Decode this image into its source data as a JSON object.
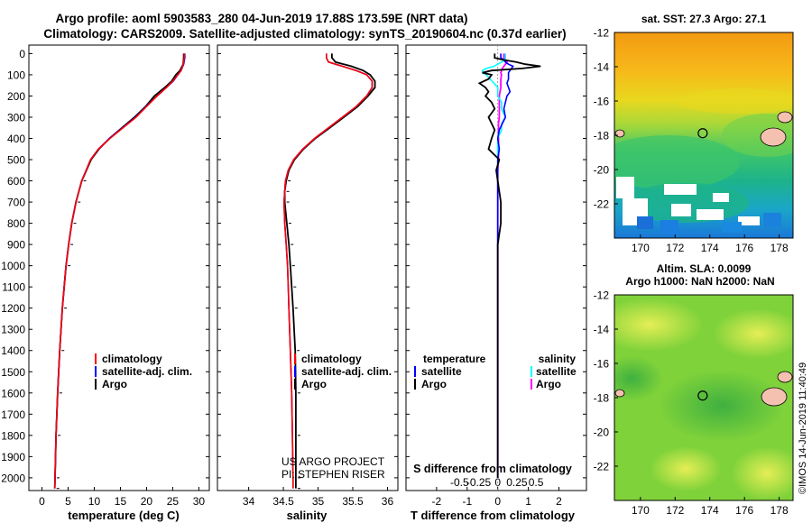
{
  "header": {
    "line1": "Argo profile: aoml 5903583_280 04-Jun-2019 17.88S 173.59E (NRT data)",
    "line2": "Climatology: CARS2009. Satellite-adjusted climatology: synTS_20190604.nc (0.37d earlier)"
  },
  "credits": {
    "project": "US ARGO PROJECT",
    "pi": "PI: STEPHEN RISER",
    "imos": "©IMOS 14-Jun-2019 11:40:49"
  },
  "colors": {
    "climatology": "#ff0000",
    "satellite": "#0000ff",
    "argo": "#000000",
    "sal_satellite": "#00ffff",
    "sal_argo": "#ff00ff"
  },
  "depth_axis": {
    "ticks": [
      "0",
      "100",
      "200",
      "300",
      "400",
      "500",
      "600",
      "700",
      "800",
      "900",
      "1000",
      "1100",
      "1200",
      "1300",
      "1400",
      "1500",
      "1600",
      "1700",
      "1800",
      "1900",
      "2000"
    ],
    "range": [
      -40,
      2060
    ]
  },
  "legends": {
    "climatology": "climatology",
    "satellite_adj": "satellite-adj. clim.",
    "argo": "Argo",
    "temperature": "temperature",
    "salinity": "salinity",
    "satellite": "satellite"
  },
  "maps": {
    "top_title": "sat. SST: 27.3 Argo: 27.1",
    "bottom_title1": "Altim. SLA: 0.0099",
    "bottom_title2": "Argo h1000: NaN h2000: NaN",
    "lat_ticks": [
      "-12",
      "-14",
      "-16",
      "-18",
      "-20",
      "-22"
    ],
    "lon_ticks": [
      "170",
      "172",
      "174",
      "176",
      "178"
    ],
    "lat_range": [
      -24,
      -12
    ],
    "lon_range": [
      168.5,
      178.8
    ],
    "argo_position": {
      "lat": -17.88,
      "lon": 173.59
    }
  },
  "chart_data": [
    {
      "type": "line",
      "name": "temperature",
      "xlabel": "temperature (deg C)",
      "xticks": [
        "0",
        "5",
        "10",
        "15",
        "20",
        "25",
        "30"
      ],
      "xlim": [
        -2.5,
        32
      ],
      "ylim": [
        -40,
        2060
      ],
      "depth": [
        0,
        20,
        50,
        80,
        100,
        130,
        160,
        200,
        250,
        300,
        350,
        400,
        450,
        500,
        600,
        700,
        800,
        900,
        1000,
        1200,
        1400,
        1600,
        1800,
        2000,
        2050
      ],
      "series": [
        {
          "name": "climatology",
          "values": [
            27.2,
            27.2,
            27.0,
            26.6,
            26.0,
            25.0,
            23.8,
            22.0,
            20.0,
            18.0,
            15.5,
            13.0,
            10.8,
            9.3,
            7.6,
            6.5,
            5.7,
            5.1,
            4.6,
            3.9,
            3.4,
            3.0,
            2.7,
            2.5,
            2.45
          ]
        },
        {
          "name": "satellite-adj. clim.",
          "values": [
            27.3,
            27.3,
            27.1,
            26.6,
            26.0,
            25.1,
            23.8,
            22.0,
            19.9,
            17.9,
            15.4,
            12.9,
            10.8,
            9.3,
            7.6,
            6.5,
            5.7,
            5.1,
            4.6,
            3.9,
            3.4,
            3.0,
            2.7,
            2.5,
            2.45
          ]
        },
        {
          "name": "Argo",
          "values": [
            27.1,
            27.1,
            27.0,
            26.4,
            25.6,
            24.8,
            23.5,
            21.5,
            19.8,
            17.7,
            15.3,
            12.9,
            10.9,
            9.4,
            7.6,
            6.5,
            5.7,
            5.1,
            4.6,
            3.9,
            3.4,
            3.0,
            2.7,
            2.5,
            2.45
          ]
        }
      ]
    },
    {
      "type": "line",
      "name": "salinity",
      "xlabel": "salinity",
      "xticks": [
        "34",
        "34.5",
        "35",
        "35.5",
        "36"
      ],
      "xlim": [
        33.55,
        36.15
      ],
      "ylim": [
        -40,
        2060
      ],
      "depth": [
        0,
        20,
        40,
        60,
        80,
        100,
        130,
        160,
        200,
        250,
        300,
        350,
        400,
        450,
        500,
        550,
        600,
        650,
        700,
        800,
        900,
        1000,
        1100,
        1200,
        1400,
        1600,
        1800,
        2000,
        2050
      ],
      "series": [
        {
          "name": "climatology",
          "values": [
            35.12,
            35.12,
            35.15,
            35.35,
            35.55,
            35.7,
            35.78,
            35.78,
            35.7,
            35.55,
            35.35,
            35.15,
            34.95,
            34.78,
            34.65,
            34.57,
            34.53,
            34.52,
            34.51,
            34.52,
            34.54,
            34.56,
            34.57,
            34.58,
            34.6,
            34.62,
            34.63,
            34.64,
            34.64
          ]
        },
        {
          "name": "satellite-adj. clim.",
          "values": [
            35.12,
            35.12,
            35.15,
            35.35,
            35.55,
            35.7,
            35.78,
            35.78,
            35.7,
            35.55,
            35.35,
            35.15,
            34.95,
            34.78,
            34.65,
            34.57,
            34.53,
            34.52,
            34.51,
            34.52,
            34.54,
            34.56,
            34.57,
            34.58,
            34.6,
            34.62,
            34.63,
            34.64,
            34.64
          ]
        },
        {
          "name": "Argo",
          "values": [
            35.2,
            35.2,
            35.25,
            35.48,
            35.65,
            35.75,
            35.82,
            35.82,
            35.72,
            35.57,
            35.37,
            35.17,
            34.96,
            34.79,
            34.66,
            34.58,
            34.54,
            34.52,
            34.52,
            34.55,
            34.58,
            34.6,
            34.62,
            34.64,
            34.67,
            34.68,
            34.68,
            34.68,
            34.68
          ]
        }
      ]
    },
    {
      "type": "line",
      "name": "difference from climatology",
      "xlabel": "T difference from climatology",
      "xlabel2": "S difference from climatology",
      "xticks_t": [
        "-2",
        "-1",
        "0",
        "1",
        "2"
      ],
      "xticks_s": [
        "-0.5",
        "-0.25",
        "0",
        "0.25",
        "0.5"
      ],
      "xlim": [
        -3,
        2.9
      ],
      "ylim": [
        -40,
        2060
      ],
      "depth": [
        0,
        20,
        30,
        40,
        50,
        60,
        70,
        80,
        90,
        100,
        120,
        140,
        160,
        180,
        200,
        230,
        260,
        300,
        330,
        360,
        400,
        450,
        500,
        550,
        600,
        700,
        800,
        900,
        1000,
        1200,
        1400,
        1600,
        1800,
        2000
      ],
      "series": [
        {
          "name": "temperature Argo",
          "values": [
            -0.1,
            -0.1,
            0.2,
            0.6,
            0.9,
            1.4,
            0.8,
            -0.2,
            -0.5,
            -0.2,
            -0.3,
            -0.6,
            -0.4,
            -0.3,
            -0.4,
            -0.2,
            -0.1,
            -0.3,
            -0.2,
            -0.1,
            -0.2,
            -0.3,
            0.05,
            -0.05,
            0.0,
            0.1,
            0.1,
            0.0,
            0.0,
            0.0,
            0.0,
            0.0,
            0.0,
            0.0
          ]
        },
        {
          "name": "temperature satellite",
          "values": [
            0.1,
            0.1,
            0.2,
            0.25,
            0.35,
            0.5,
            0.45,
            0.4,
            0.35,
            0.35,
            0.35,
            0.3,
            0.35,
            0.4,
            0.3,
            0.25,
            0.2,
            0.25,
            0.15,
            0.05,
            0.0,
            0.05,
            0.0,
            0.0,
            0.0,
            0.0,
            0.0,
            0.0,
            0.0,
            0.0,
            0.0,
            0.0,
            0.0,
            0.0
          ]
        },
        {
          "name": "salinity satellite",
          "values": [
            0.1,
            0.1,
            0.1,
            0.05,
            0.0,
            -0.05,
            -0.15,
            -0.2,
            -0.2,
            -0.15,
            -0.1,
            -0.05,
            0.0,
            0.0,
            0.0,
            0.05,
            0.05,
            0.1,
            0.05,
            0.05,
            0.0,
            0.0,
            0.0,
            0.0,
            0.0,
            0.0,
            0.0,
            0.0,
            0.0,
            0.0,
            0.0,
            0.0,
            0.0,
            0.0
          ]
        },
        {
          "name": "salinity Argo",
          "values": [
            0.08,
            0.08,
            0.1,
            0.12,
            0.1,
            0.08,
            0.06,
            0.05,
            0.04,
            0.05,
            0.04,
            0.04,
            0.04,
            0.03,
            0.02,
            0.02,
            0.02,
            0.02,
            0.01,
            0.01,
            0.01,
            0.01,
            0.01,
            0.0,
            0.0,
            0.0,
            0.0,
            0.0,
            0.0,
            0.0,
            0.0,
            0.0,
            0.0,
            0.0
          ]
        }
      ]
    }
  ]
}
